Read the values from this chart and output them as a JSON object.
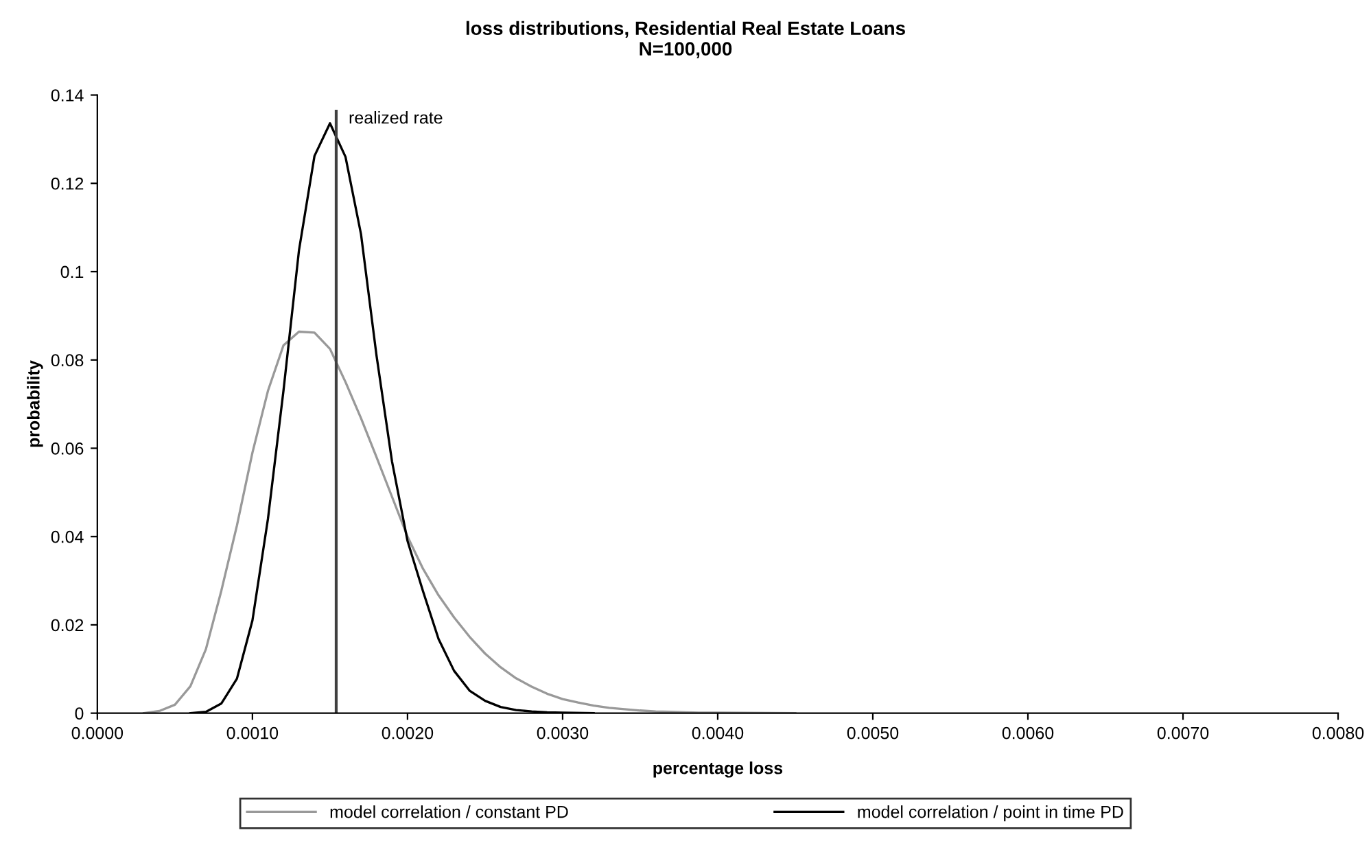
{
  "chart_data": {
    "type": "line",
    "title": "loss distributions, Residential Real Estate Loans\nN=100,000",
    "xlabel": "percentage loss",
    "ylabel": "probability",
    "series": [
      {
        "name": "model correlation / constant PD",
        "color": "#999999",
        "x": [
          0.0003,
          0.0004,
          0.0005,
          0.0006,
          0.0007,
          0.0008,
          0.0009,
          0.001,
          0.0011,
          0.0012,
          0.0013,
          0.0014,
          0.0015,
          0.0016,
          0.0017,
          0.0018,
          0.0019,
          0.002,
          0.0021,
          0.0022,
          0.0023,
          0.0024,
          0.0025,
          0.0026,
          0.0027,
          0.0028,
          0.0029,
          0.003,
          0.0031,
          0.0032,
          0.0033,
          0.0034,
          0.0035,
          0.0036,
          0.0037,
          0.0038,
          0.0039,
          0.004,
          0.0045
        ],
        "values": [
          0,
          0.0005,
          0.0019,
          0.0061,
          0.0145,
          0.0278,
          0.0425,
          0.059,
          0.073,
          0.0833,
          0.0864,
          0.0862,
          0.0825,
          0.075,
          0.0668,
          0.058,
          0.049,
          0.04,
          0.0327,
          0.0267,
          0.0217,
          0.0173,
          0.0135,
          0.0104,
          0.0079,
          0.006,
          0.0044,
          0.0032,
          0.0024,
          0.0017,
          0.0012,
          0.0009,
          0.0006,
          0.0004,
          0.0003,
          0.0002,
          0.0001,
          0.0001,
          0
        ]
      },
      {
        "name": "model correlation / point in time PD",
        "color": "#000000",
        "x": [
          0.0006,
          0.0007,
          0.0008,
          0.0009,
          0.001,
          0.0011,
          0.0012,
          0.0013,
          0.0014,
          0.0015,
          0.0016,
          0.0017,
          0.0018,
          0.0019,
          0.002,
          0.0021,
          0.0022,
          0.0023,
          0.0024,
          0.0025,
          0.0026,
          0.0027,
          0.0028,
          0.0029,
          0.003,
          0.0032
        ],
        "values": [
          0,
          0.0003,
          0.0022,
          0.0078,
          0.021,
          0.044,
          0.073,
          0.1048,
          0.1262,
          0.1336,
          0.126,
          0.1085,
          0.081,
          0.057,
          0.039,
          0.0276,
          0.0168,
          0.0096,
          0.0051,
          0.0028,
          0.0014,
          0.0007,
          0.0004,
          0.0002,
          0.0001,
          0
        ]
      }
    ],
    "xlim": [
      0,
      0.008
    ],
    "ylim": [
      0,
      0.14
    ],
    "xticks": [
      {
        "value": 0,
        "label": "0.0000"
      },
      {
        "value": 0.001,
        "label": "0.0010"
      },
      {
        "value": 0.002,
        "label": "0.0020"
      },
      {
        "value": 0.003,
        "label": "0.0030"
      },
      {
        "value": 0.004,
        "label": "0.0040"
      },
      {
        "value": 0.005,
        "label": "0.0050"
      },
      {
        "value": 0.006,
        "label": "0.0060"
      },
      {
        "value": 0.007,
        "label": "0.0070"
      },
      {
        "value": 0.008,
        "label": "0.0080"
      }
    ],
    "yticks": [
      0,
      0.02,
      0.04,
      0.06,
      0.08,
      0.1,
      0.12,
      0.14
    ],
    "ref_lines": [
      {
        "axis": "x",
        "value": 0.00154,
        "label": "realized rate",
        "color": "#404040"
      }
    ],
    "grid": false,
    "legend": "bottom",
    "marker": "none",
    "line_style": "solid"
  }
}
